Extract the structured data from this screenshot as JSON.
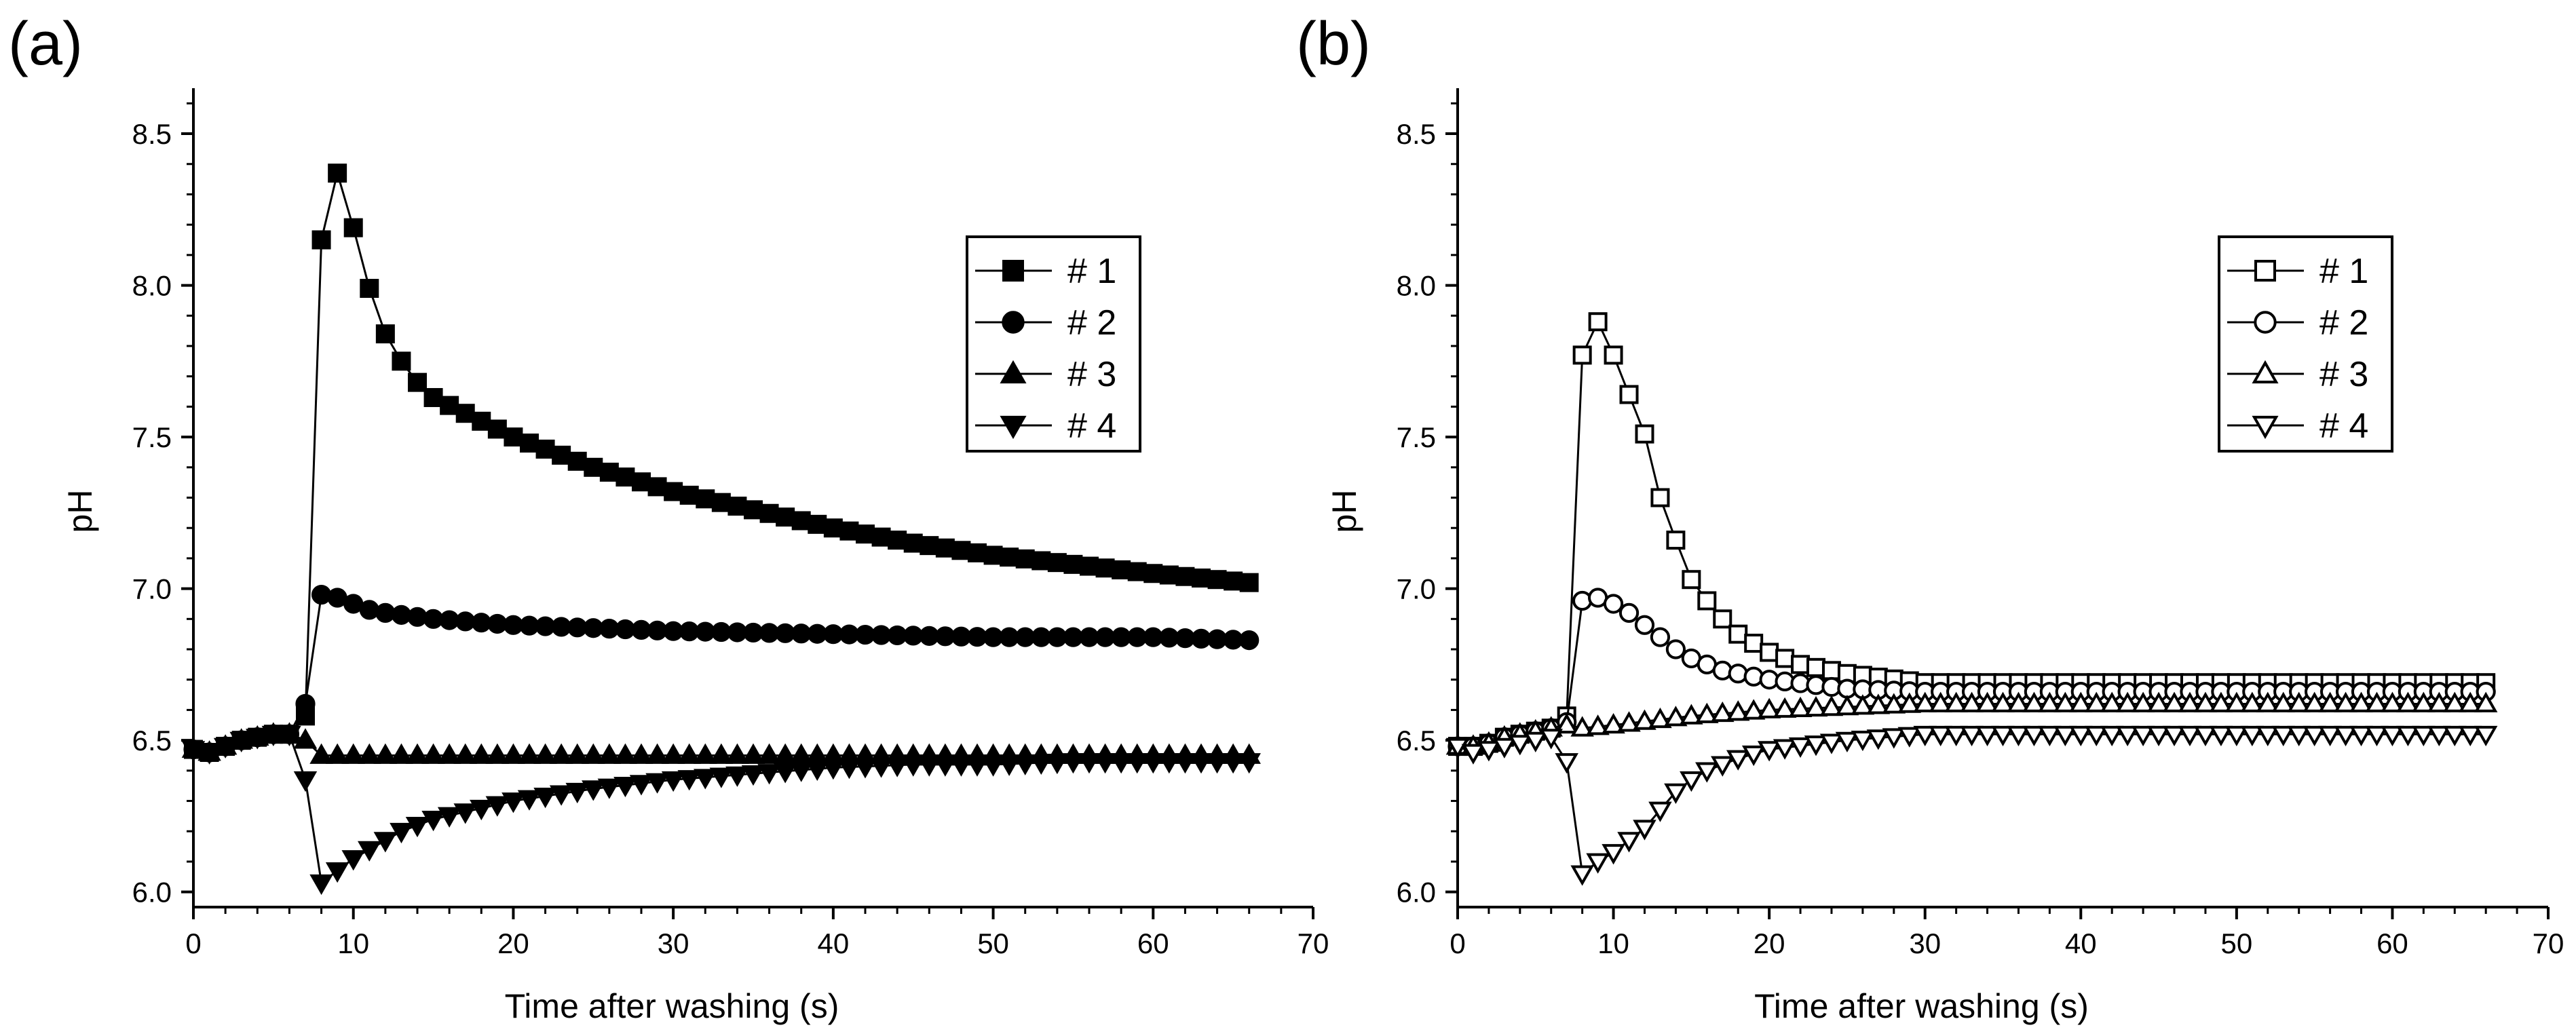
{
  "chart_data": [
    {
      "panel_label": "(a)",
      "type": "line",
      "marker_fill": "filled",
      "xlabel": "Time after washing (s)",
      "ylabel": "pH",
      "xlim": [
        0,
        70
      ],
      "ylim": [
        5.95,
        8.65
      ],
      "xticks": [
        "0",
        "10",
        "20",
        "30",
        "40",
        "50",
        "60",
        "70"
      ],
      "yticks": [
        "6.0",
        "6.5",
        "7.0",
        "7.5",
        "8.0",
        "8.5"
      ],
      "legend_position": "top-right",
      "series": [
        {
          "name": "# 1",
          "marker": "square",
          "points": [
            [
              0,
              6.47
            ],
            [
              1,
              6.46
            ],
            [
              2,
              6.48
            ],
            [
              3,
              6.5
            ],
            [
              4,
              6.51
            ],
            [
              5,
              6.52
            ],
            [
              6,
              6.52
            ],
            [
              7,
              6.58
            ],
            [
              8,
              8.15
            ],
            [
              9,
              8.37
            ],
            [
              10,
              8.19
            ],
            [
              11,
              7.99
            ],
            [
              12,
              7.84
            ],
            [
              13,
              7.75
            ],
            [
              14,
              7.68
            ],
            [
              15,
              7.63
            ],
            [
              20,
              7.5
            ],
            [
              25,
              7.4
            ],
            [
              30,
              7.32
            ],
            [
              35,
              7.26
            ],
            [
              40,
              7.2
            ],
            [
              45,
              7.15
            ],
            [
              50,
              7.11
            ],
            [
              55,
              7.08
            ],
            [
              60,
              7.05
            ],
            [
              66,
              7.02
            ]
          ]
        },
        {
          "name": "# 2",
          "marker": "circle",
          "points": [
            [
              0,
              6.47
            ],
            [
              1,
              6.46
            ],
            [
              2,
              6.48
            ],
            [
              3,
              6.5
            ],
            [
              4,
              6.51
            ],
            [
              5,
              6.52
            ],
            [
              6,
              6.52
            ],
            [
              7,
              6.62
            ],
            [
              8,
              6.98
            ],
            [
              9,
              6.97
            ],
            [
              10,
              6.95
            ],
            [
              11,
              6.93
            ],
            [
              12,
              6.92
            ],
            [
              15,
              6.9
            ],
            [
              20,
              6.88
            ],
            [
              25,
              6.87
            ],
            [
              30,
              6.86
            ],
            [
              40,
              6.85
            ],
            [
              50,
              6.84
            ],
            [
              60,
              6.84
            ],
            [
              66,
              6.83
            ]
          ]
        },
        {
          "name": "# 3",
          "marker": "triangle-up",
          "points": [
            [
              0,
              6.47
            ],
            [
              1,
              6.46
            ],
            [
              2,
              6.48
            ],
            [
              3,
              6.5
            ],
            [
              4,
              6.51
            ],
            [
              5,
              6.52
            ],
            [
              6,
              6.52
            ],
            [
              7,
              6.5
            ],
            [
              8,
              6.45
            ],
            [
              9,
              6.45
            ],
            [
              10,
              6.45
            ],
            [
              20,
              6.45
            ],
            [
              30,
              6.45
            ],
            [
              40,
              6.45
            ],
            [
              50,
              6.45
            ],
            [
              60,
              6.45
            ],
            [
              66,
              6.45
            ]
          ]
        },
        {
          "name": "# 4",
          "marker": "triangle-down",
          "points": [
            [
              0,
              6.47
            ],
            [
              1,
              6.46
            ],
            [
              2,
              6.48
            ],
            [
              3,
              6.5
            ],
            [
              4,
              6.51
            ],
            [
              5,
              6.52
            ],
            [
              6,
              6.52
            ],
            [
              7,
              6.37
            ],
            [
              8,
              6.03
            ],
            [
              9,
              6.07
            ],
            [
              10,
              6.11
            ],
            [
              11,
              6.14
            ],
            [
              12,
              6.17
            ],
            [
              13,
              6.2
            ],
            [
              15,
              6.24
            ],
            [
              20,
              6.3
            ],
            [
              25,
              6.34
            ],
            [
              30,
              6.37
            ],
            [
              35,
              6.39
            ],
            [
              40,
              6.41
            ],
            [
              45,
              6.42
            ],
            [
              50,
              6.42
            ],
            [
              55,
              6.43
            ],
            [
              60,
              6.43
            ],
            [
              66,
              6.43
            ]
          ]
        }
      ]
    },
    {
      "panel_label": "(b)",
      "type": "line",
      "marker_fill": "open",
      "xlabel": "Time after washing (s)",
      "ylabel": "pH",
      "xlim": [
        0,
        70
      ],
      "ylim": [
        5.95,
        8.65
      ],
      "xticks": [
        "0",
        "10",
        "20",
        "30",
        "40",
        "50",
        "60",
        "70"
      ],
      "yticks": [
        "6.0",
        "6.5",
        "7.0",
        "7.5",
        "8.0",
        "8.5"
      ],
      "legend_position": "top-right",
      "series": [
        {
          "name": "# 1",
          "marker": "square",
          "points": [
            [
              0,
              6.48
            ],
            [
              1,
              6.48
            ],
            [
              2,
              6.49
            ],
            [
              3,
              6.51
            ],
            [
              4,
              6.52
            ],
            [
              5,
              6.53
            ],
            [
              6,
              6.54
            ],
            [
              7,
              6.58
            ],
            [
              8,
              7.77
            ],
            [
              9,
              7.88
            ],
            [
              10,
              7.77
            ],
            [
              11,
              7.64
            ],
            [
              12,
              7.51
            ],
            [
              13,
              7.3
            ],
            [
              14,
              7.16
            ],
            [
              15,
              7.03
            ],
            [
              16,
              6.96
            ],
            [
              17,
              6.9
            ],
            [
              18,
              6.85
            ],
            [
              20,
              6.79
            ],
            [
              22,
              6.75
            ],
            [
              25,
              6.72
            ],
            [
              30,
              6.69
            ],
            [
              35,
              6.69
            ],
            [
              40,
              6.69
            ],
            [
              50,
              6.69
            ],
            [
              60,
              6.69
            ],
            [
              66,
              6.69
            ]
          ]
        },
        {
          "name": "# 2",
          "marker": "circle",
          "points": [
            [
              0,
              6.48
            ],
            [
              1,
              6.48
            ],
            [
              2,
              6.49
            ],
            [
              3,
              6.51
            ],
            [
              4,
              6.52
            ],
            [
              5,
              6.53
            ],
            [
              6,
              6.54
            ],
            [
              7,
              6.56
            ],
            [
              8,
              6.96
            ],
            [
              9,
              6.97
            ],
            [
              10,
              6.95
            ],
            [
              11,
              6.92
            ],
            [
              12,
              6.88
            ],
            [
              13,
              6.84
            ],
            [
              14,
              6.8
            ],
            [
              15,
              6.77
            ],
            [
              17,
              6.73
            ],
            [
              20,
              6.7
            ],
            [
              25,
              6.67
            ],
            [
              30,
              6.66
            ],
            [
              40,
              6.66
            ],
            [
              50,
              6.66
            ],
            [
              60,
              6.66
            ],
            [
              66,
              6.66
            ]
          ]
        },
        {
          "name": "# 3",
          "marker": "triangle-up",
          "points": [
            [
              0,
              6.48
            ],
            [
              1,
              6.48
            ],
            [
              2,
              6.49
            ],
            [
              3,
              6.51
            ],
            [
              4,
              6.52
            ],
            [
              5,
              6.53
            ],
            [
              6,
              6.54
            ],
            [
              7,
              6.55
            ],
            [
              8,
              6.54
            ],
            [
              10,
              6.55
            ],
            [
              15,
              6.58
            ],
            [
              20,
              6.6
            ],
            [
              25,
              6.61
            ],
            [
              30,
              6.62
            ],
            [
              40,
              6.62
            ],
            [
              50,
              6.62
            ],
            [
              60,
              6.62
            ],
            [
              66,
              6.62
            ]
          ]
        },
        {
          "name": "# 4",
          "marker": "triangle-down",
          "points": [
            [
              0,
              6.48
            ],
            [
              1,
              6.46
            ],
            [
              2,
              6.47
            ],
            [
              3,
              6.48
            ],
            [
              4,
              6.49
            ],
            [
              5,
              6.5
            ],
            [
              6,
              6.51
            ],
            [
              7,
              6.43
            ],
            [
              8,
              6.06
            ],
            [
              9,
              6.1
            ],
            [
              10,
              6.13
            ],
            [
              11,
              6.17
            ],
            [
              12,
              6.21
            ],
            [
              13,
              6.27
            ],
            [
              14,
              6.33
            ],
            [
              15,
              6.37
            ],
            [
              16,
              6.4
            ],
            [
              18,
              6.44
            ],
            [
              20,
              6.47
            ],
            [
              25,
              6.5
            ],
            [
              30,
              6.52
            ],
            [
              40,
              6.52
            ],
            [
              50,
              6.52
            ],
            [
              60,
              6.52
            ],
            [
              66,
              6.52
            ]
          ]
        }
      ]
    }
  ]
}
